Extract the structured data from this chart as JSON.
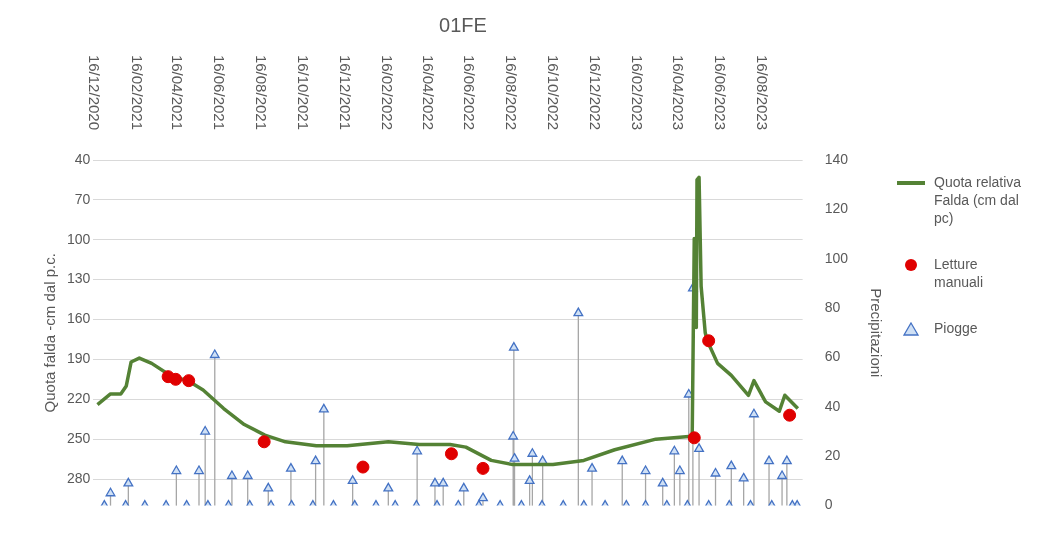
{
  "chart_data": {
    "type": "line",
    "title": "01FE",
    "ylabel": "Quota falda -cm dal p.c.",
    "y2label": "Precipitazioni",
    "xlim": [
      "2020-12-16",
      "2023-10-16"
    ],
    "xticks": [
      {
        "value": "2020-12-16",
        "label": "16/12/2020"
      },
      {
        "value": "2021-02-16",
        "label": "16/02/2021"
      },
      {
        "value": "2021-04-16",
        "label": "16/04/2021"
      },
      {
        "value": "2021-06-16",
        "label": "16/06/2021"
      },
      {
        "value": "2021-08-16",
        "label": "16/08/2021"
      },
      {
        "value": "2021-10-16",
        "label": "16/10/2021"
      },
      {
        "value": "2021-12-16",
        "label": "16/12/2021"
      },
      {
        "value": "2022-02-16",
        "label": "16/02/2022"
      },
      {
        "value": "2022-04-16",
        "label": "16/04/2022"
      },
      {
        "value": "2022-06-16",
        "label": "16/06/2022"
      },
      {
        "value": "2022-08-16",
        "label": "16/08/2022"
      },
      {
        "value": "2022-10-16",
        "label": "16/10/2022"
      },
      {
        "value": "2022-12-16",
        "label": "16/12/2022"
      },
      {
        "value": "2023-02-16",
        "label": "16/02/2023"
      },
      {
        "value": "2023-04-16",
        "label": "16/04/2023"
      },
      {
        "value": "2023-06-16",
        "label": "16/06/2023"
      },
      {
        "value": "2023-08-16",
        "label": "16/08/2023"
      }
    ],
    "ylim": [
      300,
      40
    ],
    "yticks": [
      40,
      70,
      100,
      130,
      160,
      190,
      220,
      250,
      280
    ],
    "y2lim": [
      0,
      140
    ],
    "y2ticks": [
      0,
      20,
      40,
      60,
      80,
      100,
      120,
      140
    ],
    "grid": "y",
    "legend": "right",
    "series": [
      {
        "name": "Quota relativa Falda (cm dal pc)",
        "color": "#548235",
        "marker": "none",
        "x": [
          "2020-12-22",
          "2021-01-10",
          "2021-01-25",
          "2021-02-02",
          "2021-02-09",
          "2021-02-21",
          "2021-03-11",
          "2021-04-10",
          "2021-05-03",
          "2021-05-25",
          "2021-06-24",
          "2021-07-24",
          "2021-08-23",
          "2021-09-22",
          "2021-11-06",
          "2021-12-21",
          "2022-02-19",
          "2022-04-05",
          "2022-05-20",
          "2022-06-12",
          "2022-07-19",
          "2022-08-18",
          "2022-10-17",
          "2022-12-01",
          "2023-01-15",
          "2023-03-16",
          "2023-05-03",
          "2023-05-08",
          "2023-05-11",
          "2023-05-14",
          "2023-05-15",
          "2023-05-18",
          "2023-05-21",
          "2023-05-27",
          "2023-05-30",
          "2023-06-14",
          "2023-07-04",
          "2023-07-29",
          "2023-08-06",
          "2023-08-23",
          "2023-09-12",
          "2023-09-20",
          "2023-10-09"
        ],
        "values": [
          224,
          216,
          216,
          210,
          192,
          189,
          193,
          203,
          206,
          213,
          227,
          239,
          247,
          252,
          255,
          255,
          252,
          254,
          254,
          256,
          266,
          269,
          269,
          266,
          258,
          250,
          248,
          248,
          99,
          166,
          55,
          53,
          135,
          170,
          176,
          193,
          202,
          217,
          206,
          222,
          229,
          217,
          227
        ]
      },
      {
        "name": "Letture manuali",
        "type": "scatter",
        "color": "#e00000",
        "marker": "circle",
        "x": [
          "2021-04-04",
          "2021-04-15",
          "2021-05-04",
          "2021-08-22",
          "2022-01-13",
          "2022-05-22",
          "2022-07-07",
          "2023-05-11",
          "2023-06-01",
          "2023-09-27"
        ],
        "values": [
          203,
          205,
          206,
          252,
          271,
          261,
          272,
          249,
          176,
          232
        ]
      },
      {
        "name": "Piogge",
        "type": "lollipop",
        "axis": "y2",
        "color": "#4472c4",
        "marker": "triangle",
        "x": [
          "2021-01-10",
          "2021-02-05",
          "2021-04-16",
          "2021-05-19",
          "2021-05-28",
          "2021-06-11",
          "2021-07-06",
          "2021-07-29",
          "2021-08-28",
          "2021-09-30",
          "2021-11-05",
          "2021-11-17",
          "2021-12-29",
          "2022-02-19",
          "2022-04-02",
          "2022-04-28",
          "2022-05-10",
          "2022-06-09",
          "2022-07-07",
          "2022-08-20",
          "2022-08-21",
          "2022-08-22",
          "2022-09-13",
          "2022-09-17",
          "2022-10-02",
          "2022-11-23",
          "2022-12-13",
          "2023-01-26",
          "2023-03-01",
          "2023-03-26",
          "2023-04-12",
          "2023-04-20",
          "2023-05-03",
          "2023-05-09",
          "2023-05-18",
          "2023-06-11",
          "2023-07-04",
          "2023-07-22",
          "2023-08-06",
          "2023-08-28",
          "2023-09-16",
          "2023-09-23",
          "2023-10-08",
          "2021-01-01",
          "2021-02-01",
          "2021-03-01",
          "2021-04-01",
          "2021-05-01",
          "2021-06-01",
          "2021-07-01",
          "2021-08-01",
          "2021-09-01",
          "2021-10-01",
          "2021-11-01",
          "2021-12-01",
          "2022-01-01",
          "2022-02-01",
          "2022-03-01",
          "2022-04-01",
          "2022-05-01",
          "2022-06-01",
          "2022-07-01",
          "2022-08-01",
          "2022-09-01",
          "2022-10-01",
          "2022-11-01",
          "2022-12-01",
          "2023-01-01",
          "2023-02-01",
          "2023-03-01",
          "2023-04-01",
          "2023-05-01",
          "2023-06-01",
          "2023-07-01",
          "2023-08-01",
          "2023-09-01",
          "2023-10-01"
        ],
        "values": [
          5,
          9,
          14,
          14,
          30,
          61,
          12,
          12,
          7,
          15,
          18,
          39,
          10,
          7,
          22,
          9,
          9,
          7,
          3,
          28,
          64,
          19,
          10,
          21,
          18,
          78,
          15,
          18,
          14,
          9,
          22,
          14,
          45,
          88,
          23,
          13,
          16,
          11,
          37,
          18,
          12,
          18,
          0,
          0,
          0,
          0,
          0,
          0,
          0,
          0,
          0,
          0,
          0,
          0,
          0,
          0,
          0,
          0,
          0,
          0,
          0,
          0,
          0,
          0,
          0,
          0,
          0,
          0,
          0,
          0,
          0,
          0,
          0,
          0,
          0,
          0,
          0
        ]
      }
    ]
  }
}
